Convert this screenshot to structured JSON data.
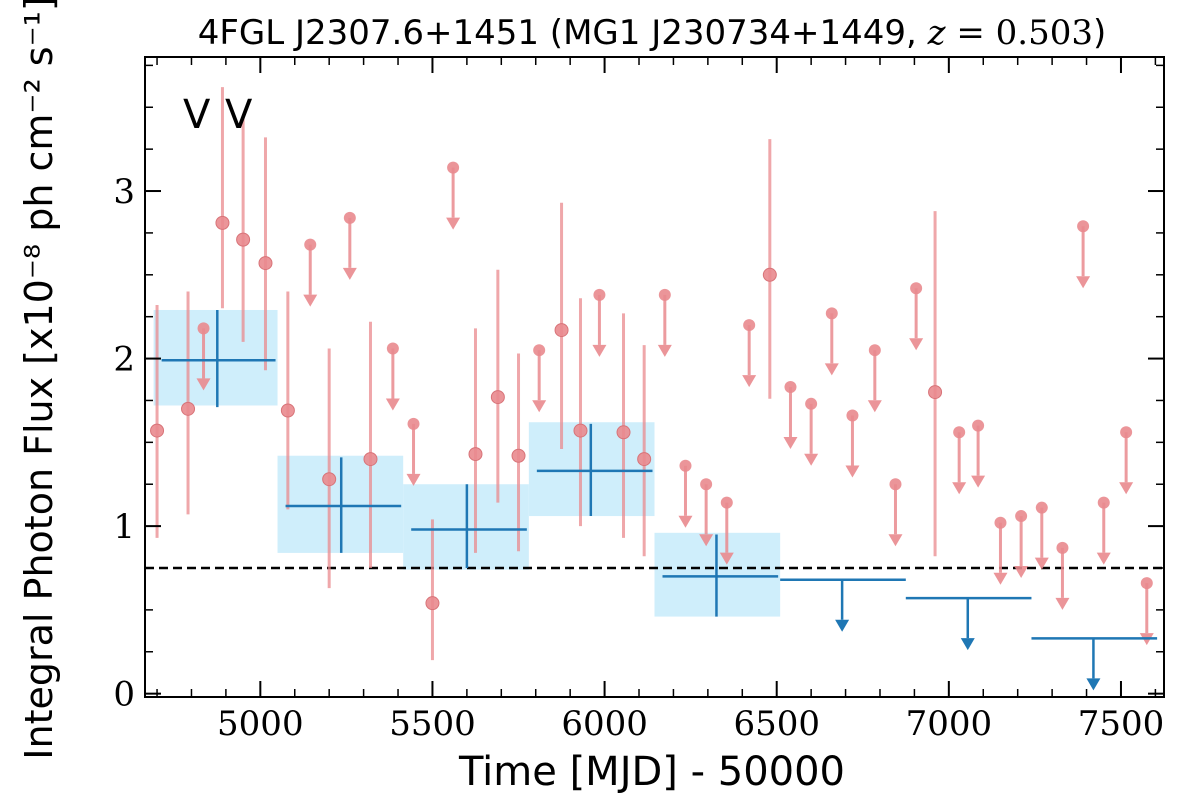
{
  "chart_data": {
    "type": "scatter",
    "title": "4FGL J2307.6+1451 (MG1 J230734+1449, z = 0.503)",
    "xlabel": "Time [MJD] - 50000",
    "ylabel": "Integral Photon Flux [x10⁻⁸ ph cm⁻² s⁻¹]",
    "xlim": [
      4665,
      7625
    ],
    "ylim": [
      -0.02,
      3.8
    ],
    "xticks": [
      5000,
      5500,
      6000,
      6500,
      7000,
      7500
    ],
    "yticks": [
      0,
      1,
      2,
      3
    ],
    "xtick_labels": [
      "5000",
      "5500",
      "6000",
      "6500",
      "7000",
      "7500"
    ],
    "ytick_labels": [
      "0",
      "1",
      "2",
      "3"
    ],
    "grid": false,
    "legend": {
      "placement": "top-left",
      "entries": [
        {
          "label": "V",
          "color": "#1f77b4"
        },
        {
          "label": "V",
          "color": "#d62728"
        }
      ]
    },
    "reference_line": {
      "y": 0.75,
      "style": "dashed",
      "color": "#000000"
    },
    "series": [
      {
        "marker_color": "#e98a8e",
        "detections": [
          {
            "x": 4700,
            "y": 1.57,
            "lo": 0.93,
            "hi": 2.32
          },
          {
            "x": 4790,
            "y": 1.7,
            "lo": 1.07,
            "hi": 2.4
          },
          {
            "x": 4890,
            "y": 2.81,
            "lo": 2.3,
            "hi": 3.62
          },
          {
            "x": 4950,
            "y": 2.71,
            "lo": 2.1,
            "hi": 3.45
          },
          {
            "x": 5015,
            "y": 2.57,
            "lo": 1.93,
            "hi": 3.32
          },
          {
            "x": 5080,
            "y": 1.69,
            "lo": 1.1,
            "hi": 2.4
          },
          {
            "x": 5200,
            "y": 1.28,
            "lo": 0.63,
            "hi": 2.06
          },
          {
            "x": 5320,
            "y": 1.4,
            "lo": 0.75,
            "hi": 2.22
          },
          {
            "x": 5500,
            "y": 0.54,
            "lo": 0.2,
            "hi": 1.04
          },
          {
            "x": 5625,
            "y": 1.43,
            "lo": 0.84,
            "hi": 2.18
          },
          {
            "x": 5690,
            "y": 1.77,
            "lo": 1.14,
            "hi": 2.53
          },
          {
            "x": 5750,
            "y": 1.42,
            "lo": 0.85,
            "hi": 2.03
          },
          {
            "x": 5875,
            "y": 2.17,
            "lo": 1.46,
            "hi": 2.93
          },
          {
            "x": 5930,
            "y": 1.57,
            "lo": 1.0,
            "hi": 2.36
          },
          {
            "x": 6055,
            "y": 1.56,
            "lo": 0.93,
            "hi": 2.27
          },
          {
            "x": 6115,
            "y": 1.4,
            "lo": 0.82,
            "hi": 2.08
          },
          {
            "x": 6480,
            "y": 2.5,
            "lo": 1.76,
            "hi": 3.31
          },
          {
            "x": 6960,
            "y": 1.8,
            "lo": 0.82,
            "hi": 2.88
          }
        ],
        "upper_limits": [
          {
            "x": 4835,
            "y": 2.18
          },
          {
            "x": 5145,
            "y": 2.68
          },
          {
            "x": 5260,
            "y": 2.84
          },
          {
            "x": 5385,
            "y": 2.06
          },
          {
            "x": 5445,
            "y": 1.61
          },
          {
            "x": 5560,
            "y": 3.14
          },
          {
            "x": 5810,
            "y": 2.05
          },
          {
            "x": 5985,
            "y": 2.38
          },
          {
            "x": 6175,
            "y": 2.38
          },
          {
            "x": 6235,
            "y": 1.36
          },
          {
            "x": 6295,
            "y": 1.25
          },
          {
            "x": 6355,
            "y": 1.14
          },
          {
            "x": 6420,
            "y": 2.2
          },
          {
            "x": 6540,
            "y": 1.83
          },
          {
            "x": 6600,
            "y": 1.73
          },
          {
            "x": 6660,
            "y": 2.27
          },
          {
            "x": 6720,
            "y": 1.66
          },
          {
            "x": 6785,
            "y": 2.05
          },
          {
            "x": 6845,
            "y": 1.25
          },
          {
            "x": 6905,
            "y": 2.42
          },
          {
            "x": 7030,
            "y": 1.56
          },
          {
            "x": 7085,
            "y": 1.6
          },
          {
            "x": 7150,
            "y": 1.02
          },
          {
            "x": 7210,
            "y": 1.06
          },
          {
            "x": 7270,
            "y": 1.11
          },
          {
            "x": 7330,
            "y": 0.87
          },
          {
            "x": 7390,
            "y": 2.79
          },
          {
            "x": 7450,
            "y": 1.14
          },
          {
            "x": 7515,
            "y": 1.56
          },
          {
            "x": 7575,
            "y": 0.66
          }
        ]
      },
      {
        "marker_color": "#1f77b4",
        "band_color": "#cfeefb",
        "bins": [
          {
            "x0": 4690,
            "x1": 5050,
            "y": 1.99,
            "lo": 1.71,
            "hi": 2.29,
            "xc": 4875,
            "band_lo": 1.72,
            "band_hi": 2.29
          },
          {
            "x0": 5050,
            "x1": 5415,
            "y": 1.12,
            "lo": 0.84,
            "hi": 1.41,
            "xc": 5235,
            "band_lo": 0.84,
            "band_hi": 1.42
          },
          {
            "x0": 5415,
            "x1": 5780,
            "y": 0.98,
            "lo": 0.75,
            "hi": 1.25,
            "xc": 5600,
            "band_lo": 0.74,
            "band_hi": 1.25
          },
          {
            "x0": 5780,
            "x1": 6145,
            "y": 1.33,
            "lo": 1.06,
            "hi": 1.61,
            "xc": 5960,
            "band_lo": 1.06,
            "band_hi": 1.62
          },
          {
            "x0": 6145,
            "x1": 6510,
            "y": 0.7,
            "lo": 0.46,
            "hi": 0.95,
            "xc": 6325,
            "band_lo": 0.46,
            "band_hi": 0.96
          }
        ],
        "upper_limits": [
          {
            "x0": 6510,
            "x1": 6875,
            "y": 0.68,
            "xc": 6690
          },
          {
            "x0": 6875,
            "x1": 7240,
            "y": 0.57,
            "xc": 7055
          },
          {
            "x0": 7240,
            "x1": 7605,
            "y": 0.33,
            "xc": 7420
          }
        ]
      }
    ]
  }
}
